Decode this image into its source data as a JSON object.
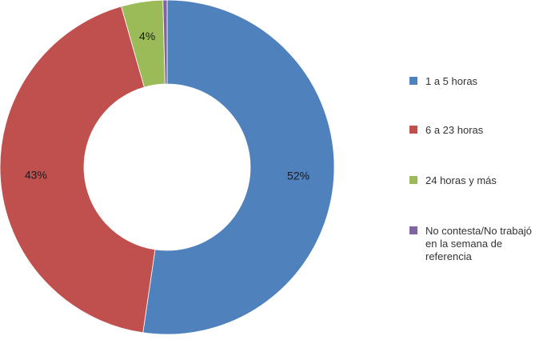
{
  "chart_data": {
    "type": "pie",
    "variant": "doughnut",
    "categories": [
      "1 a 5 horas",
      "6 a 23 horas",
      "24 horas y más",
      "No contesta/No trabajó en la semana de referencia"
    ],
    "legend_lines": [
      [
        "1 a 5 horas"
      ],
      [
        "6 a 23 horas"
      ],
      [
        "24 horas y más"
      ],
      [
        "No contesta/No trabajó",
        "en la semana de",
        "referencia"
      ]
    ],
    "values": [
      52,
      43,
      4,
      0.4
    ],
    "data_labels": [
      "52%",
      "43%",
      "4%",
      ""
    ],
    "colors": [
      "#4f81bd",
      "#c0504d",
      "#9bbb59",
      "#8064a2"
    ],
    "start_angle_deg": 0,
    "direction": "clockwise",
    "legend_position": "right",
    "title": ""
  }
}
